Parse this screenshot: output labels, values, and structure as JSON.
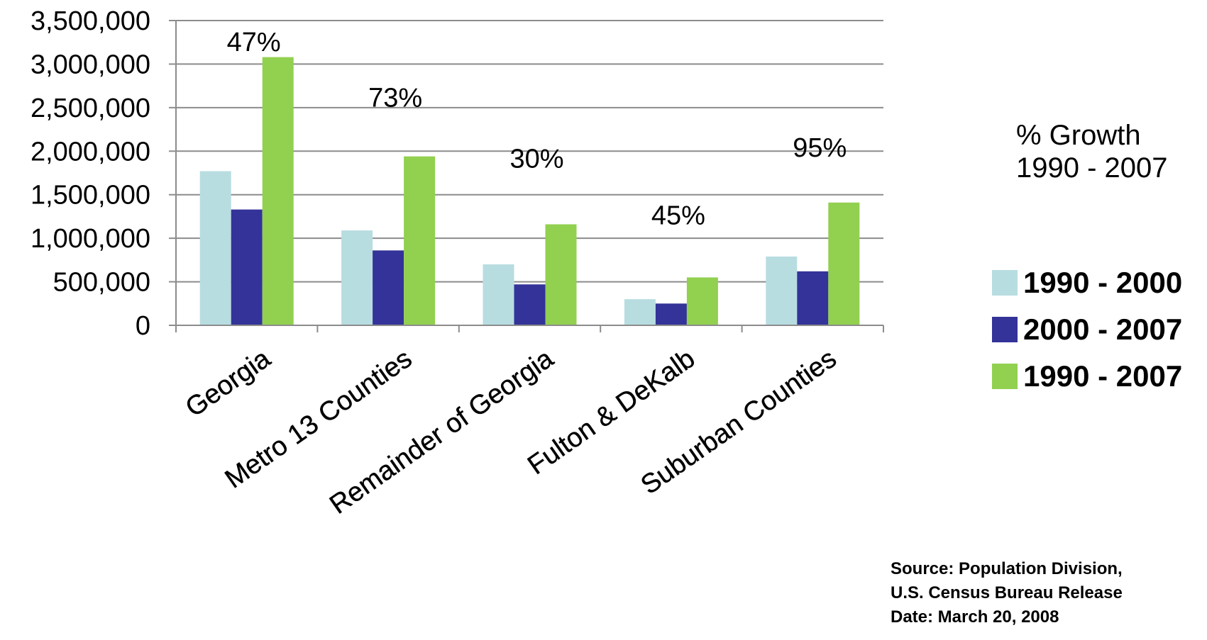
{
  "chart_data": {
    "type": "bar",
    "categories": [
      "Georgia",
      "Metro 13 Counties",
      "Remainder of Georgia",
      "Fulton & DeKalb",
      "Suburban Counties"
    ],
    "series": [
      {
        "name": "1990 - 2000",
        "color": "#b8dde1",
        "values": [
          1770000,
          1090000,
          700000,
          300000,
          790000
        ]
      },
      {
        "name": "2000 - 2007",
        "color": "#333399",
        "values": [
          1330000,
          860000,
          470000,
          250000,
          620000
        ]
      },
      {
        "name": "1990 - 2007",
        "color": "#92d050",
        "values": [
          3080000,
          1940000,
          1160000,
          550000,
          1410000
        ]
      }
    ],
    "annotations": [
      "47%",
      "73%",
      "30%",
      "45%",
      "95%"
    ],
    "yticks": [
      "0",
      "500,000",
      "1,000,000",
      "1,500,000",
      "2,000,000",
      "2,500,000",
      "3,000,000",
      "3,500,000"
    ],
    "ylim": [
      0,
      3500000
    ],
    "grid": true,
    "legend_title": "% Growth\n1990 - 2007",
    "legend_position": "right"
  },
  "source": {
    "line1": "Source: Population Division,",
    "line2": "U.S. Census Bureau Release",
    "line3": "Date: March 20, 2008"
  }
}
